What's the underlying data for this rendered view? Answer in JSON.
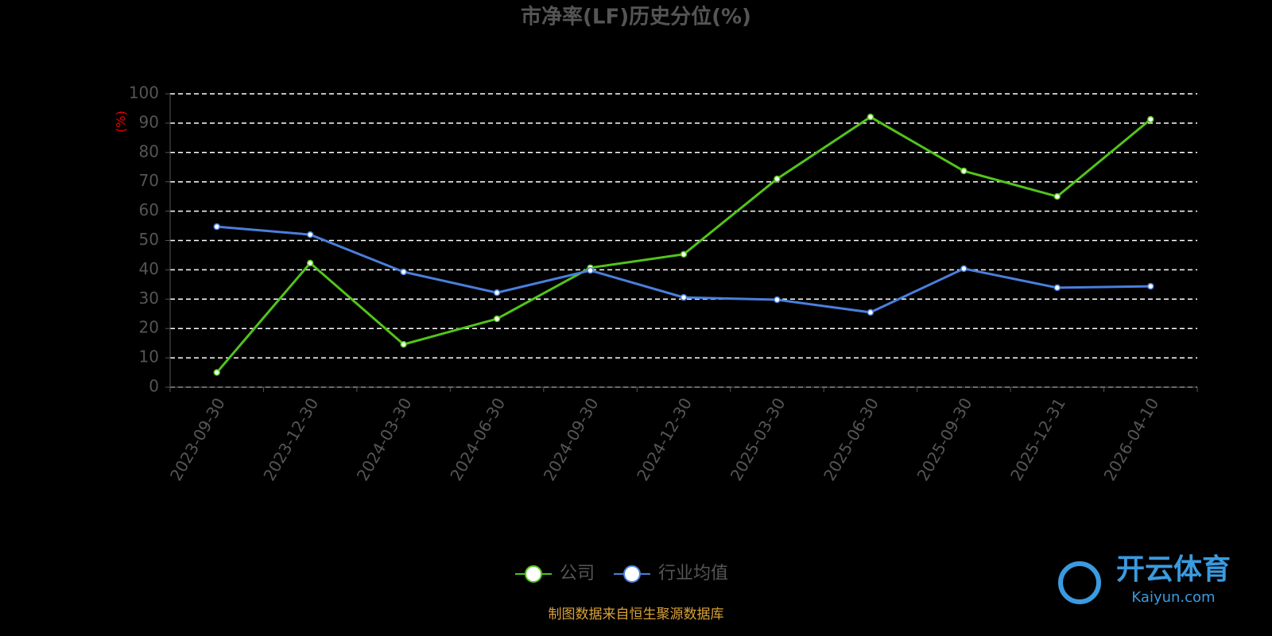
{
  "chart_data": {
    "type": "line",
    "title": "市净率(LF)历史分位(%)",
    "y_label": "(%)",
    "categories": [
      "2023-09-30",
      "2023-12-30",
      "2024-03-30",
      "2024-06-30",
      "2024-09-30",
      "2024-12-30",
      "2025-03-30",
      "2025-06-30",
      "2025-09-30",
      "2025-12-31",
      "2026-04-10"
    ],
    "series": [
      {
        "name": "公司",
        "color": "#52c41a",
        "values": [
          5,
          42.3,
          14.6,
          23.3,
          40.7,
          45.3,
          71,
          92.1,
          73.7,
          65,
          91.3
        ]
      },
      {
        "name": "行业均值",
        "color": "#4a7fdc",
        "values": [
          54.7,
          52,
          39.3,
          32.2,
          39.8,
          30.6,
          29.8,
          25.5,
          40.4,
          33.9,
          34.4
        ]
      }
    ],
    "ylim": [
      0,
      100
    ],
    "yticks": [
      0,
      10,
      20,
      30,
      40,
      50,
      60,
      70,
      80,
      90,
      100
    ],
    "grid": true,
    "legend": "bottom",
    "source": "制图数据来自恒生聚源数据库",
    "watermark": {
      "brand": "开云体育",
      "site": "Kaiyun.com"
    }
  }
}
